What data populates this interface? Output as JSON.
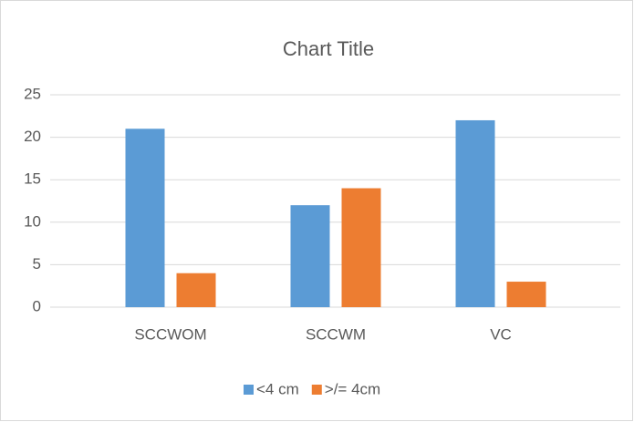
{
  "chart_data": {
    "type": "bar",
    "title": "Chart Title",
    "categories": [
      "SCCWOM",
      "SCCWM",
      "VC"
    ],
    "series": [
      {
        "name": "<4 cm",
        "color": "#5b9bd5",
        "values": [
          21,
          12,
          22
        ]
      },
      {
        "name": ">/= 4cm",
        "color": "#ed7d31",
        "values": [
          4,
          14,
          3
        ]
      }
    ],
    "ylim": [
      0,
      25
    ],
    "yticks": [
      0,
      5,
      10,
      15,
      20,
      25
    ],
    "grid": true,
    "legend": "bottom"
  }
}
